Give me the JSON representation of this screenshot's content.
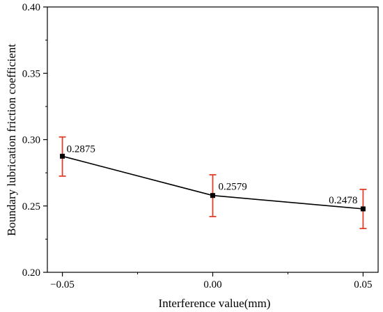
{
  "chart_data": {
    "type": "line",
    "title": "",
    "xlabel": "Interference value(mm)",
    "ylabel": "Boundary lubrication friction coefficient",
    "xlim": [
      -0.055,
      0.055
    ],
    "ylim": [
      0.2,
      0.4
    ],
    "x_ticks": [
      -0.05,
      0.0,
      0.05
    ],
    "x_tick_labels": [
      "−0.05",
      "0.00",
      "0.05"
    ],
    "y_ticks": [
      0.2,
      0.25,
      0.3,
      0.35,
      0.4
    ],
    "y_tick_labels": [
      "0.20",
      "0.25",
      "0.30",
      "0.35",
      "0.40"
    ],
    "grid": false,
    "series": [
      {
        "x": [
          -0.05,
          0.0,
          0.05
        ],
        "y": [
          0.2875,
          0.2579,
          0.2478
        ],
        "y_err_low": [
          0.2725,
          0.242,
          0.233
        ],
        "y_err_high": [
          0.302,
          0.2735,
          0.2625
        ],
        "point_labels": [
          "0.2875",
          "0.2579",
          "0.2478"
        ],
        "line_color": "#000000",
        "marker_color": "#000000",
        "error_bar_color": "#e0402a"
      }
    ]
  }
}
